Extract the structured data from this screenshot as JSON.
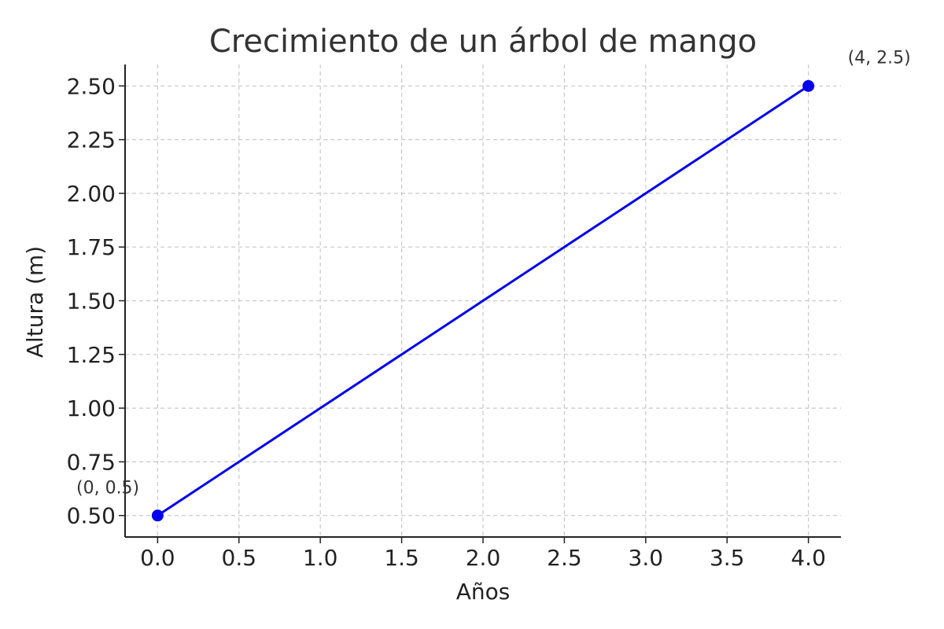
{
  "chart_data": {
    "type": "line",
    "title": "Crecimiento de un árbol de mango",
    "xlabel": "Años",
    "ylabel": "Altura (m)",
    "xlim": [
      -0.2,
      4.2
    ],
    "ylim": [
      0.4,
      2.6
    ],
    "x_ticks": [
      0.0,
      0.5,
      1.0,
      1.5,
      2.0,
      2.5,
      3.0,
      3.5,
      4.0
    ],
    "x_tick_labels": [
      "0.0",
      "0.5",
      "1.0",
      "1.5",
      "2.0",
      "2.5",
      "3.0",
      "3.5",
      "4.0"
    ],
    "y_ticks": [
      0.5,
      0.75,
      1.0,
      1.25,
      1.5,
      1.75,
      2.0,
      2.25,
      2.5
    ],
    "y_tick_labels": [
      "0.50",
      "0.75",
      "1.00",
      "1.25",
      "1.50",
      "1.75",
      "2.00",
      "2.25",
      "2.50"
    ],
    "grid": true,
    "series": [
      {
        "x": [
          0,
          4
        ],
        "y": [
          0.5,
          2.5
        ],
        "color": "#0000ee",
        "marker": "circle"
      }
    ],
    "annotations": [
      {
        "text": "(0, 0.5)",
        "x": 0,
        "y": 0.5
      },
      {
        "text": "(4, 2.5)",
        "x": 4,
        "y": 2.5
      }
    ]
  }
}
